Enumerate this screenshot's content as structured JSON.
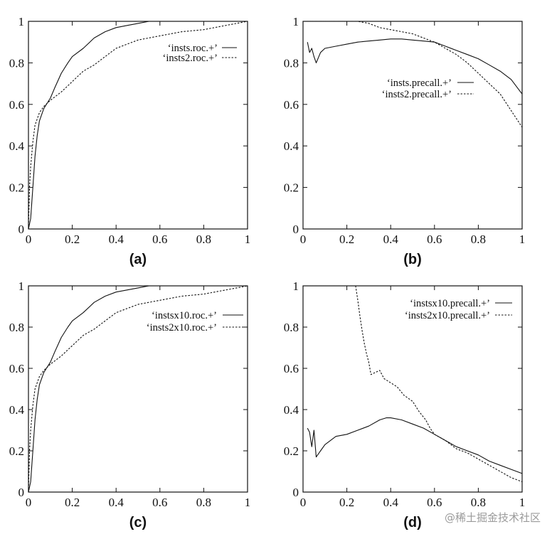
{
  "watermark": "@稀土掘金技术社区",
  "chart_data": [
    {
      "type": "line",
      "panel_label": "(a)",
      "xlim": [
        0,
        1
      ],
      "ylim": [
        0,
        1
      ],
      "xticks": [
        "0",
        "0.2",
        "0.4",
        "0.6",
        "0.8",
        "1"
      ],
      "yticks": [
        "0",
        "0.2",
        "0.4",
        "0.6",
        "0.8",
        "1"
      ],
      "legend_position": "top-right",
      "series": [
        {
          "name": "‘insts.roc.+’",
          "style": "solid",
          "x": [
            0,
            0.01,
            0.02,
            0.03,
            0.04,
            0.05,
            0.07,
            0.1,
            0.12,
            0.15,
            0.18,
            0.2,
            0.25,
            0.3,
            0.35,
            0.4,
            0.45,
            0.5,
            0.55,
            0.7,
            1
          ],
          "y": [
            0,
            0.05,
            0.2,
            0.35,
            0.45,
            0.52,
            0.58,
            0.63,
            0.68,
            0.75,
            0.8,
            0.83,
            0.87,
            0.92,
            0.95,
            0.97,
            0.98,
            0.99,
            1,
            1,
            1
          ]
        },
        {
          "name": "‘insts2.roc.+’",
          "style": "dashed",
          "x": [
            0,
            0.005,
            0.01,
            0.02,
            0.03,
            0.05,
            0.07,
            0.1,
            0.15,
            0.2,
            0.25,
            0.3,
            0.35,
            0.4,
            0.45,
            0.5,
            0.6,
            0.7,
            0.8,
            0.9,
            0.95,
            1
          ],
          "y": [
            0,
            0.2,
            0.3,
            0.42,
            0.5,
            0.56,
            0.59,
            0.62,
            0.66,
            0.71,
            0.76,
            0.79,
            0.83,
            0.87,
            0.89,
            0.91,
            0.93,
            0.95,
            0.96,
            0.98,
            0.99,
            1
          ]
        }
      ]
    },
    {
      "type": "line",
      "panel_label": "(b)",
      "xlim": [
        0,
        1
      ],
      "ylim": [
        0,
        1
      ],
      "xticks": [
        "0",
        "0.2",
        "0.4",
        "0.6",
        "0.8",
        "1"
      ],
      "yticks": [
        "0",
        "0.2",
        "0.4",
        "0.6",
        "0.8",
        "1"
      ],
      "legend_position": "center-right",
      "series": [
        {
          "name": "‘insts.precall.+’",
          "style": "solid",
          "x": [
            0.02,
            0.03,
            0.04,
            0.05,
            0.06,
            0.08,
            0.1,
            0.15,
            0.2,
            0.25,
            0.3,
            0.35,
            0.4,
            0.45,
            0.5,
            0.55,
            0.6,
            0.65,
            0.7,
            0.75,
            0.8,
            0.85,
            0.9,
            0.95,
            1
          ],
          "y": [
            0.9,
            0.85,
            0.87,
            0.83,
            0.8,
            0.85,
            0.87,
            0.88,
            0.89,
            0.9,
            0.905,
            0.91,
            0.915,
            0.915,
            0.91,
            0.905,
            0.9,
            0.88,
            0.86,
            0.84,
            0.82,
            0.79,
            0.76,
            0.72,
            0.65
          ]
        },
        {
          "name": "‘insts2.precall.+’",
          "style": "dashed",
          "x": [
            0.02,
            0.1,
            0.2,
            0.25,
            0.3,
            0.35,
            0.4,
            0.45,
            0.5,
            0.55,
            0.6,
            0.65,
            0.7,
            0.75,
            0.8,
            0.85,
            0.9,
            0.95,
            1
          ],
          "y": [
            1,
            1,
            1,
            1,
            0.99,
            0.97,
            0.96,
            0.95,
            0.94,
            0.92,
            0.9,
            0.87,
            0.84,
            0.8,
            0.75,
            0.7,
            0.65,
            0.57,
            0.49
          ]
        }
      ]
    },
    {
      "type": "line",
      "panel_label": "(c)",
      "xlim": [
        0,
        1
      ],
      "ylim": [
        0,
        1
      ],
      "xticks": [
        "0",
        "0.2",
        "0.4",
        "0.6",
        "0.8",
        "1"
      ],
      "yticks": [
        "0",
        "0.2",
        "0.4",
        "0.6",
        "0.8",
        "1"
      ],
      "legend_position": "top-right",
      "series": [
        {
          "name": "‘instsx10.roc.+’",
          "style": "solid",
          "x": [
            0,
            0.01,
            0.02,
            0.03,
            0.04,
            0.05,
            0.07,
            0.1,
            0.12,
            0.15,
            0.18,
            0.2,
            0.25,
            0.3,
            0.35,
            0.4,
            0.45,
            0.5,
            0.55,
            0.7,
            1
          ],
          "y": [
            0,
            0.05,
            0.2,
            0.35,
            0.45,
            0.52,
            0.58,
            0.63,
            0.68,
            0.75,
            0.8,
            0.83,
            0.87,
            0.92,
            0.95,
            0.97,
            0.98,
            0.99,
            1,
            1,
            1
          ]
        },
        {
          "name": "‘insts2x10.roc.+’",
          "style": "dashed",
          "x": [
            0,
            0.005,
            0.01,
            0.02,
            0.03,
            0.05,
            0.07,
            0.1,
            0.15,
            0.2,
            0.25,
            0.3,
            0.35,
            0.4,
            0.45,
            0.5,
            0.6,
            0.7,
            0.8,
            0.9,
            0.95,
            1
          ],
          "y": [
            0,
            0.2,
            0.3,
            0.42,
            0.5,
            0.56,
            0.59,
            0.62,
            0.66,
            0.71,
            0.76,
            0.79,
            0.83,
            0.87,
            0.89,
            0.91,
            0.93,
            0.95,
            0.96,
            0.98,
            0.99,
            1
          ]
        }
      ]
    },
    {
      "type": "line",
      "panel_label": "(d)",
      "xlim": [
        0,
        1
      ],
      "ylim": [
        0,
        1
      ],
      "xticks": [
        "0",
        "0.2",
        "0.4",
        "0.6",
        "0.8",
        "1"
      ],
      "yticks": [
        "0",
        "0.2",
        "0.4",
        "0.6",
        "0.8",
        "1"
      ],
      "legend_position": "top-right",
      "series": [
        {
          "name": "‘instsx10.precall.+’",
          "style": "solid",
          "x": [
            0.02,
            0.03,
            0.04,
            0.05,
            0.06,
            0.08,
            0.1,
            0.15,
            0.2,
            0.25,
            0.3,
            0.35,
            0.38,
            0.4,
            0.45,
            0.5,
            0.55,
            0.6,
            0.65,
            0.7,
            0.75,
            0.8,
            0.85,
            0.9,
            0.95,
            1
          ],
          "y": [
            0.31,
            0.29,
            0.22,
            0.3,
            0.17,
            0.2,
            0.23,
            0.27,
            0.28,
            0.3,
            0.32,
            0.35,
            0.36,
            0.36,
            0.35,
            0.33,
            0.31,
            0.28,
            0.25,
            0.22,
            0.2,
            0.18,
            0.15,
            0.13,
            0.11,
            0.09
          ]
        },
        {
          "name": "‘insts2x10.precall.+’",
          "style": "dashed",
          "x": [
            0.02,
            0.1,
            0.2,
            0.24,
            0.25,
            0.26,
            0.27,
            0.28,
            0.29,
            0.3,
            0.31,
            0.33,
            0.35,
            0.37,
            0.4,
            0.43,
            0.46,
            0.5,
            0.53,
            0.56,
            0.58,
            0.6,
            0.65,
            0.7,
            0.75,
            0.8,
            0.85,
            0.9,
            0.95,
            1
          ],
          "y": [
            1,
            1,
            1,
            1,
            0.93,
            0.85,
            0.78,
            0.72,
            0.67,
            0.63,
            0.57,
            0.58,
            0.59,
            0.55,
            0.53,
            0.51,
            0.47,
            0.44,
            0.39,
            0.35,
            0.31,
            0.28,
            0.25,
            0.21,
            0.19,
            0.16,
            0.13,
            0.1,
            0.07,
            0.05
          ]
        }
      ]
    }
  ]
}
